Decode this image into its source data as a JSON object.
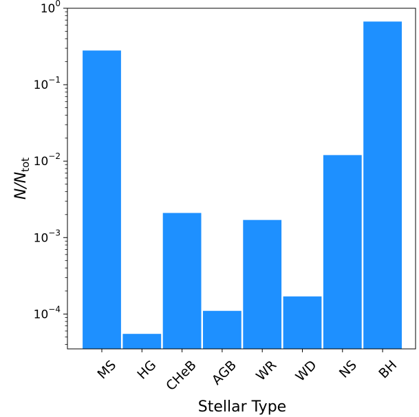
{
  "chart_data": {
    "type": "bar",
    "categories": [
      "MS",
      "HG",
      "CHeB",
      "AGB",
      "WR",
      "WD",
      "NS",
      "BH"
    ],
    "values": [
      0.28,
      5.5e-05,
      0.0021,
      0.00011,
      0.0017,
      0.00017,
      0.012,
      0.67
    ],
    "xlabel": "Stellar Type",
    "ylabel_main": "N/N",
    "ylabel_sub": "tot",
    "yscale": "log",
    "ylim": [
      3.5e-05,
      1.0
    ],
    "yticks": [
      {
        "value": 1,
        "base": "10",
        "exp": "0"
      },
      {
        "value": 0.1,
        "base": "10",
        "exp": "−1"
      },
      {
        "value": 0.01,
        "base": "10",
        "exp": "−2"
      },
      {
        "value": 0.001,
        "base": "10",
        "exp": "−3"
      },
      {
        "value": 0.0001,
        "base": "10",
        "exp": "−4"
      }
    ],
    "bar_color": "#1e90ff",
    "grid": false,
    "legend": "none"
  }
}
